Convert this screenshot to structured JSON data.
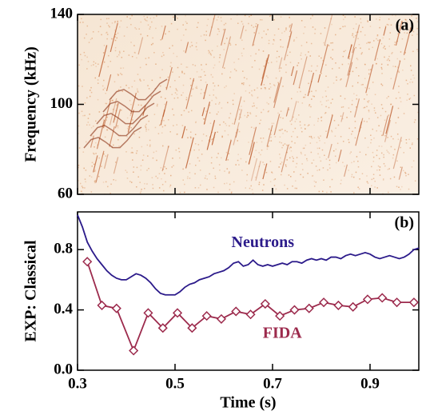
{
  "chart_data": [
    {
      "type": "spectrogram",
      "ylabel": "Frequency (kHz)",
      "panel_label": "(a)",
      "ylim": [
        60,
        140
      ],
      "yticks": [
        60,
        100,
        140
      ],
      "xlim": [
        0.3,
        1.0
      ]
    },
    {
      "type": "line",
      "ylabel": "EXP: Classical",
      "xlabel": "Time (s)",
      "panel_label": "(b)",
      "xlim": [
        0.3,
        1.0
      ],
      "xticks": [
        0.3,
        0.5,
        0.7,
        0.9
      ],
      "ylim": [
        0,
        1.05
      ],
      "yticks": [
        {
          "value": 0,
          "label": "0.0"
        },
        0.4,
        0.8
      ],
      "series": [
        {
          "name": "Neutrons",
          "color": "#2b1a8a",
          "marker": "none",
          "x": [
            0.3,
            0.31,
            0.32,
            0.33,
            0.34,
            0.35,
            0.36,
            0.37,
            0.38,
            0.39,
            0.4,
            0.41,
            0.42,
            0.43,
            0.44,
            0.45,
            0.46,
            0.47,
            0.48,
            0.49,
            0.5,
            0.51,
            0.52,
            0.53,
            0.54,
            0.55,
            0.56,
            0.57,
            0.58,
            0.59,
            0.6,
            0.61,
            0.62,
            0.63,
            0.64,
            0.65,
            0.66,
            0.67,
            0.68,
            0.69,
            0.7,
            0.71,
            0.72,
            0.73,
            0.74,
            0.75,
            0.76,
            0.77,
            0.78,
            0.79,
            0.8,
            0.81,
            0.82,
            0.83,
            0.84,
            0.85,
            0.86,
            0.87,
            0.88,
            0.89,
            0.9,
            0.91,
            0.92,
            0.93,
            0.94,
            0.95,
            0.96,
            0.97,
            0.98,
            0.99,
            1.0
          ],
          "values": [
            1.03,
            0.95,
            0.85,
            0.79,
            0.74,
            0.7,
            0.66,
            0.63,
            0.61,
            0.6,
            0.6,
            0.62,
            0.64,
            0.63,
            0.61,
            0.58,
            0.54,
            0.51,
            0.5,
            0.5,
            0.5,
            0.52,
            0.55,
            0.57,
            0.58,
            0.6,
            0.61,
            0.62,
            0.64,
            0.65,
            0.66,
            0.68,
            0.71,
            0.72,
            0.69,
            0.7,
            0.73,
            0.7,
            0.69,
            0.7,
            0.69,
            0.7,
            0.71,
            0.7,
            0.72,
            0.72,
            0.71,
            0.73,
            0.74,
            0.73,
            0.74,
            0.73,
            0.75,
            0.75,
            0.74,
            0.76,
            0.77,
            0.76,
            0.77,
            0.78,
            0.77,
            0.75,
            0.74,
            0.75,
            0.76,
            0.75,
            0.74,
            0.75,
            0.77,
            0.8,
            0.81
          ],
          "label_at": [
            0.68,
            0.84
          ]
        },
        {
          "name": "FIDA",
          "color": "#9c2a4c",
          "marker": "diamond",
          "x": [
            0.32,
            0.35,
            0.38,
            0.415,
            0.445,
            0.475,
            0.505,
            0.535,
            0.565,
            0.595,
            0.625,
            0.655,
            0.685,
            0.715,
            0.745,
            0.775,
            0.805,
            0.835,
            0.865,
            0.895,
            0.925,
            0.955,
            0.99
          ],
          "values": [
            0.72,
            0.43,
            0.41,
            0.13,
            0.38,
            0.28,
            0.38,
            0.28,
            0.36,
            0.34,
            0.39,
            0.37,
            0.44,
            0.36,
            0.4,
            0.41,
            0.45,
            0.43,
            0.42,
            0.47,
            0.48,
            0.45,
            0.45
          ],
          "label_at": [
            0.72,
            0.24
          ]
        }
      ]
    }
  ]
}
